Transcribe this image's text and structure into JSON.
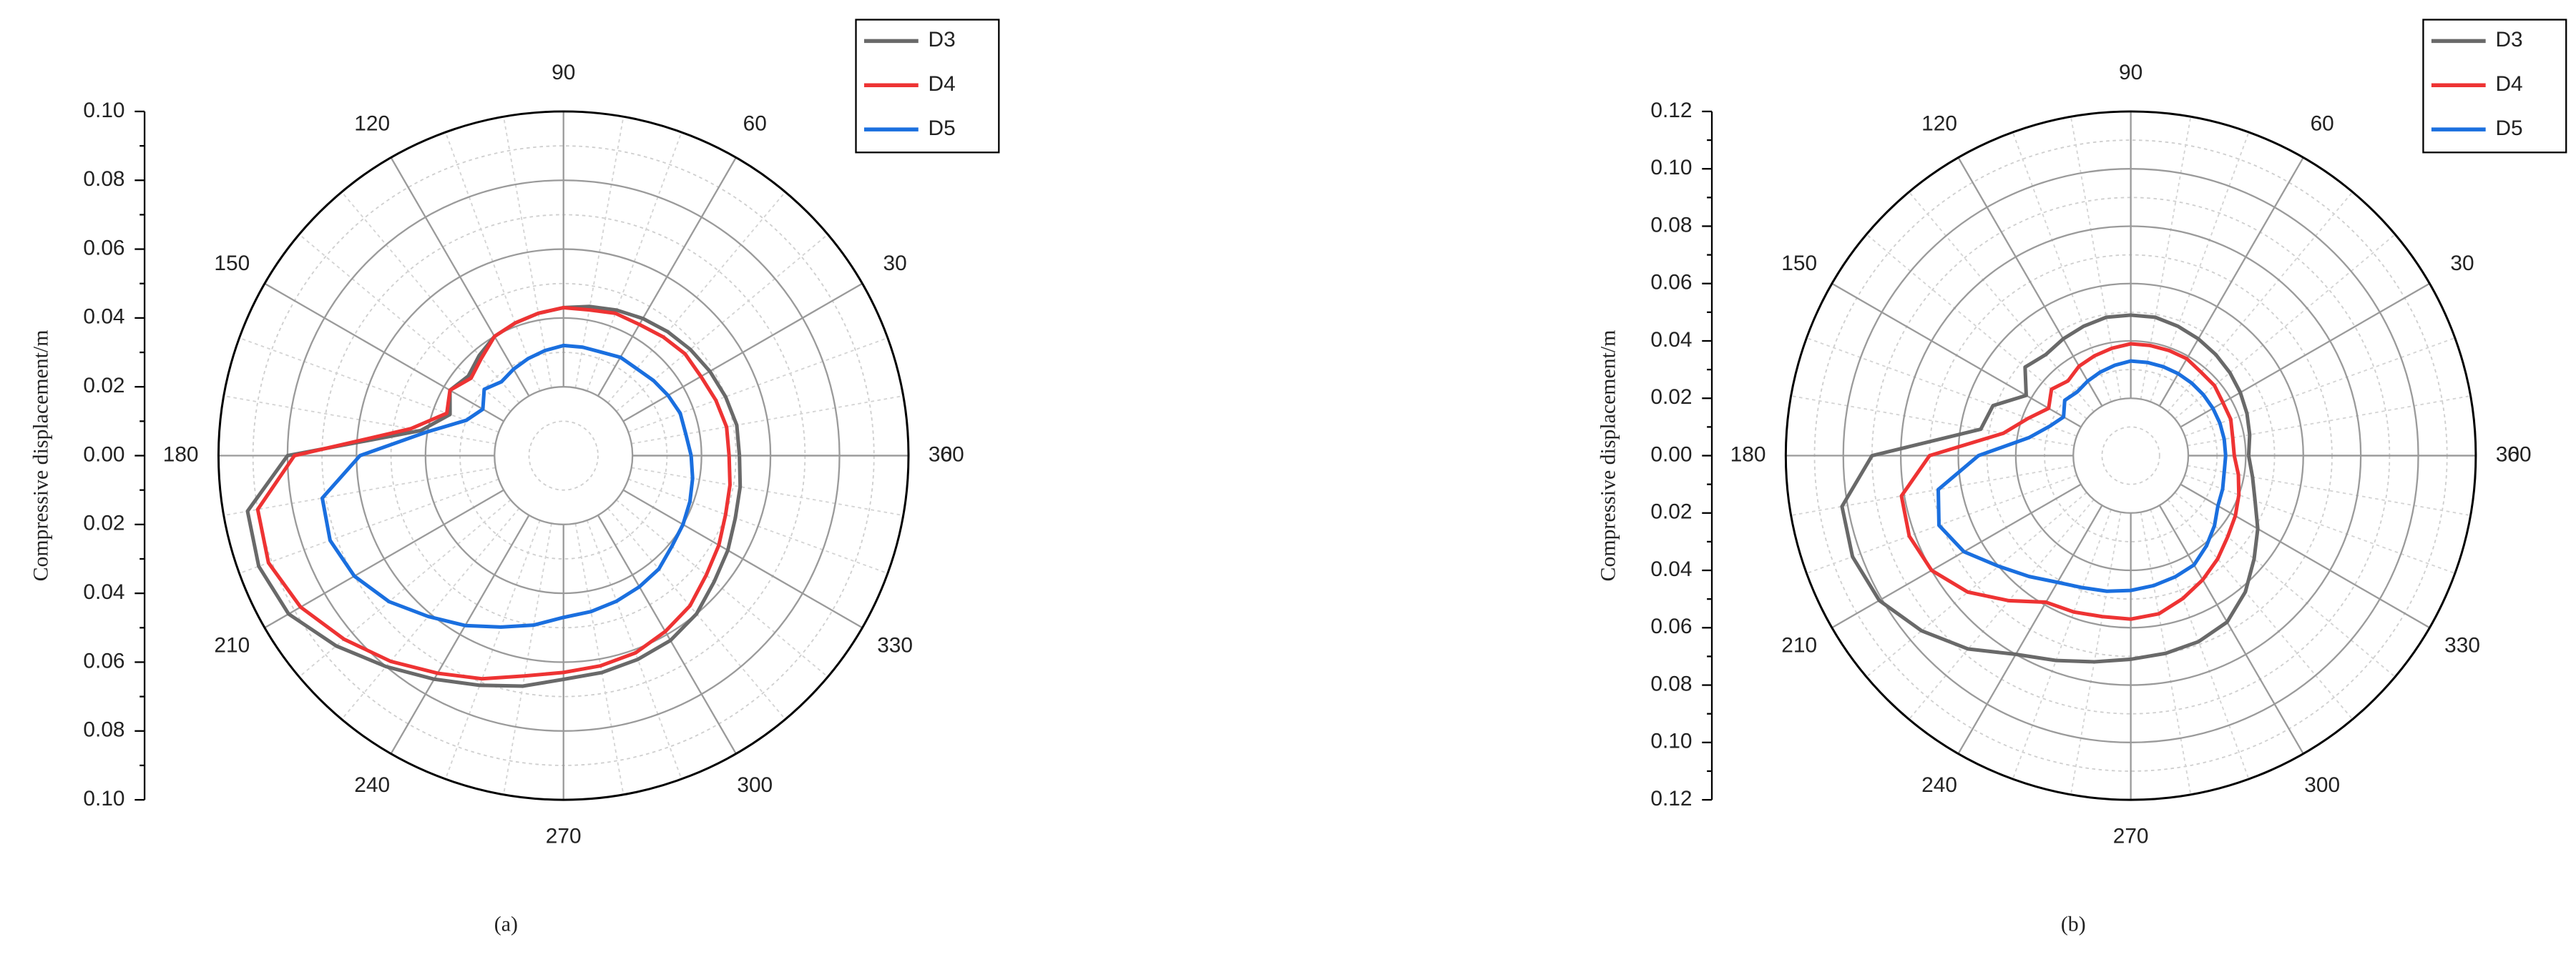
{
  "chart_data": [
    {
      "type": "polar",
      "caption": "(a)",
      "ylabel": "Compressive displacement/m",
      "theta": [
        0,
        10,
        20,
        30,
        40,
        50,
        60,
        70,
        80,
        90,
        100,
        110,
        120,
        130,
        140,
        150,
        160,
        170,
        180,
        190,
        200,
        210,
        220,
        230,
        240,
        250,
        260,
        270,
        280,
        290,
        300,
        310,
        320,
        330,
        340,
        350,
        360
      ],
      "thetaticks": [
        0,
        30,
        60,
        90,
        120,
        150,
        180,
        210,
        240,
        270,
        300,
        330,
        360
      ],
      "rlim": [
        0,
        0.1
      ],
      "rticks": [
        {
          "value": 0,
          "label": "0.00"
        },
        {
          "value": 0.02,
          "label": "0.02"
        },
        {
          "value": 0.04,
          "label": "0.04"
        },
        {
          "value": 0.06,
          "label": "0.06"
        },
        {
          "value": 0.08,
          "label": "0.08"
        },
        {
          "value": 0.1,
          "label": "0.10"
        }
      ],
      "minor_rticks": [
        0.01,
        0.03,
        0.05,
        0.07,
        0.09
      ],
      "grid": true,
      "legend": "upper right",
      "series": [
        {
          "name": "D3",
          "color": "#696969",
          "values": [
            0.051,
            0.051,
            0.05,
            0.049,
            0.048,
            0.047,
            0.046,
            0.045,
            0.044,
            0.043,
            0.042,
            0.041,
            0.04,
            0.038,
            0.036,
            0.038,
            0.035,
            0.042,
            0.08,
            0.093,
            0.094,
            0.092,
            0.086,
            0.08,
            0.075,
            0.071,
            0.068,
            0.065,
            0.064,
            0.063,
            0.062,
            0.06,
            0.057,
            0.055,
            0.053,
            0.052,
            0.051
          ]
        },
        {
          "name": "D4",
          "color": "#ee3333",
          "values": [
            0.048,
            0.048,
            0.047,
            0.046,
            0.046,
            0.045,
            0.044,
            0.044,
            0.043,
            0.043,
            0.042,
            0.041,
            0.04,
            0.037,
            0.035,
            0.038,
            0.036,
            0.045,
            0.078,
            0.09,
            0.091,
            0.088,
            0.083,
            0.078,
            0.073,
            0.069,
            0.065,
            0.063,
            0.062,
            0.061,
            0.059,
            0.057,
            0.054,
            0.052,
            0.05,
            0.049,
            0.048
          ]
        },
        {
          "name": "D5",
          "color": "#1a6fdf",
          "values": [
            0.037,
            0.036,
            0.036,
            0.035,
            0.034,
            0.033,
            0.033,
            0.032,
            0.032,
            0.032,
            0.031,
            0.03,
            0.029,
            0.028,
            0.03,
            0.027,
            0.03,
            0.04,
            0.059,
            0.071,
            0.072,
            0.07,
            0.066,
            0.061,
            0.057,
            0.053,
            0.05,
            0.047,
            0.046,
            0.045,
            0.044,
            0.043,
            0.041,
            0.04,
            0.039,
            0.038,
            0.037
          ]
        }
      ]
    },
    {
      "type": "polar",
      "caption": "(b)",
      "ylabel": "Compressive displacement/m",
      "theta": [
        0,
        10,
        20,
        30,
        40,
        50,
        60,
        70,
        80,
        90,
        100,
        110,
        120,
        130,
        140,
        150,
        160,
        170,
        180,
        190,
        200,
        210,
        220,
        230,
        240,
        250,
        260,
        270,
        280,
        290,
        300,
        310,
        320,
        330,
        340,
        350,
        360
      ],
      "thetaticks": [
        0,
        30,
        60,
        90,
        120,
        150,
        180,
        210,
        240,
        270,
        300,
        330,
        360
      ],
      "rlim": [
        0,
        0.12
      ],
      "rticks": [
        {
          "value": 0,
          "label": "0.00"
        },
        {
          "value": 0.02,
          "label": "0.02"
        },
        {
          "value": 0.04,
          "label": "0.04"
        },
        {
          "value": 0.06,
          "label": "0.06"
        },
        {
          "value": 0.08,
          "label": "0.08"
        },
        {
          "value": 0.1,
          "label": "0.10"
        },
        {
          "value": 0.12,
          "label": "0.12"
        }
      ],
      "minor_rticks": [
        0.01,
        0.03,
        0.05,
        0.07,
        0.09,
        0.11
      ],
      "grid": true,
      "legend": "upper right",
      "series": [
        {
          "name": "D3",
          "color": "#696969",
          "values": [
            0.041,
            0.042,
            0.043,
            0.044,
            0.045,
            0.046,
            0.047,
            0.048,
            0.049,
            0.049,
            0.049,
            0.048,
            0.047,
            0.046,
            0.048,
            0.042,
            0.051,
            0.053,
            0.09,
            0.102,
            0.103,
            0.101,
            0.095,
            0.088,
            0.08,
            0.076,
            0.073,
            0.071,
            0.07,
            0.069,
            0.067,
            0.062,
            0.056,
            0.051,
            0.046,
            0.043,
            0.041
          ]
        },
        {
          "name": "D4",
          "color": "#ee3333",
          "values": [
            0.036,
            0.036,
            0.037,
            0.037,
            0.038,
            0.038,
            0.039,
            0.039,
            0.039,
            0.039,
            0.038,
            0.037,
            0.036,
            0.034,
            0.036,
            0.033,
            0.038,
            0.045,
            0.07,
            0.081,
            0.082,
            0.08,
            0.074,
            0.066,
            0.059,
            0.058,
            0.057,
            0.057,
            0.056,
            0.053,
            0.05,
            0.047,
            0.044,
            0.042,
            0.04,
            0.038,
            0.036
          ]
        },
        {
          "name": "D5",
          "color": "#1a6fdf",
          "values": [
            0.033,
            0.033,
            0.033,
            0.033,
            0.033,
            0.033,
            0.033,
            0.033,
            0.033,
            0.033,
            0.032,
            0.031,
            0.03,
            0.029,
            0.03,
            0.027,
            0.03,
            0.036,
            0.053,
            0.068,
            0.071,
            0.067,
            0.06,
            0.055,
            0.051,
            0.049,
            0.048,
            0.047,
            0.046,
            0.045,
            0.044,
            0.041,
            0.038,
            0.035,
            0.034,
            0.033,
            0.033
          ]
        }
      ]
    }
  ]
}
